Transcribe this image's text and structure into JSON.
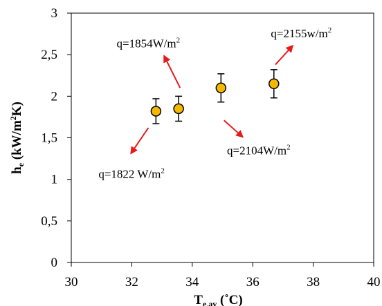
{
  "chart_data": {
    "type": "scatter",
    "title": "",
    "x_axis": {
      "label_main": "T",
      "label_sub": "e,av",
      "label_unit": " (˚C)",
      "range": [
        30,
        40
      ],
      "ticks": [
        30,
        32,
        34,
        36,
        38,
        40
      ],
      "tick_labels": [
        "30",
        "32",
        "34",
        "36",
        "38",
        "40"
      ]
    },
    "y_axis": {
      "label_main": "h",
      "label_sub": "e",
      "label_unit_pre": " (kW/m",
      "label_unit_sup": "2",
      "label_unit_post": "K)",
      "range": [
        0,
        3
      ],
      "ticks": [
        0,
        0.5,
        1,
        1.5,
        2,
        2.5,
        3
      ],
      "tick_labels": [
        "0",
        "0,5",
        "1",
        "1,5",
        "2",
        "2,5",
        "3"
      ]
    },
    "grid": false,
    "series": [
      {
        "marker_color": "#f5b800",
        "points": [
          {
            "x": 32.8,
            "y": 1.82,
            "err": 0.15
          },
          {
            "x": 33.55,
            "y": 1.85,
            "err": 0.15
          },
          {
            "x": 34.95,
            "y": 2.1,
            "err": 0.17
          },
          {
            "x": 36.7,
            "y": 2.15,
            "err": 0.17
          }
        ]
      }
    ],
    "annotations": [
      {
        "text_main": "q=1854W/m",
        "text_sup": "2",
        "label_at": [
          31.5,
          2.59
        ],
        "arrow_from": [
          33.6,
          2.1
        ],
        "arrow_to": [
          33.05,
          2.5
        ]
      },
      {
        "text_main": "q=2155w/m",
        "text_sup": "2",
        "label_at": [
          36.6,
          2.71
        ],
        "arrow_from": [
          36.75,
          2.38
        ],
        "arrow_to": [
          37.35,
          2.62
        ]
      },
      {
        "text_main": "q=2104W/m",
        "text_sup": "2",
        "label_at": [
          35.15,
          1.3
        ],
        "arrow_from": [
          35.05,
          1.71
        ],
        "arrow_to": [
          35.7,
          1.5
        ]
      },
      {
        "text_main": "q=1822 W/m",
        "text_sup": "2",
        "label_at": [
          30.9,
          1.02
        ],
        "arrow_from": [
          32.55,
          1.62
        ],
        "arrow_to": [
          31.95,
          1.3
        ]
      }
    ],
    "colors": {
      "arrow": "#e8191b",
      "marker_stroke": "#000000"
    }
  }
}
